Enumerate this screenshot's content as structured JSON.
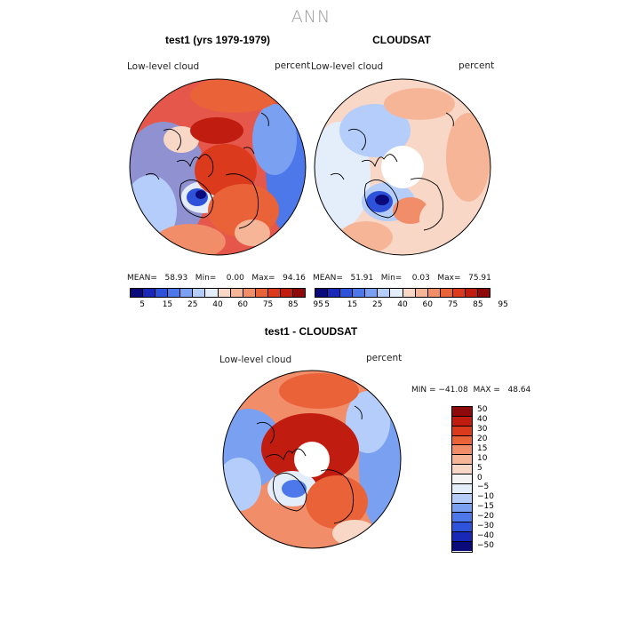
{
  "title": "ANN",
  "panel_left": {
    "title": "test1 (yrs 1979-1979)",
    "variable": "Low-level cloud",
    "units": "percent",
    "stats": "MEAN=   58.93   Min=    0.00   Max=   94.16"
  },
  "panel_right": {
    "title": "CLOUDSAT",
    "variable": "Low-level cloud",
    "units": "percent",
    "stats": "MEAN=   51.91   Min=    0.03   Max=   75.91"
  },
  "panel_diff": {
    "title": "test1 - CLOUDSAT",
    "variable": "Low-level cloud",
    "units": "percent",
    "minmax": "MIN = −41.08  MAX =   48.64"
  },
  "colorbar_top": {
    "colors": [
      "#0a0a7a",
      "#1a28b8",
      "#2e52d9",
      "#4c78ea",
      "#7aa0f2",
      "#b4cdfa",
      "#e4eefb",
      "#f9d7c7",
      "#f6b596",
      "#f28d69",
      "#ea6238",
      "#dc3a1c",
      "#c01c10",
      "#8e0a0a"
    ],
    "labels": [
      "5",
      "15",
      "25",
      "40",
      "60",
      "75",
      "85",
      "95"
    ]
  },
  "colorbar_diff": {
    "colors": [
      "#8e0a0a",
      "#c01c10",
      "#dc3a1c",
      "#ea6238",
      "#f28d69",
      "#f6b596",
      "#f9d7c7",
      "#f4f4f4",
      "#e4eefb",
      "#b4cdfa",
      "#7aa0f2",
      "#4c78ea",
      "#2e52d9",
      "#1a28b8",
      "#0a0a7a"
    ],
    "labels": [
      "50",
      "40",
      "30",
      "20",
      "15",
      "10",
      "5",
      "0",
      "−5",
      "−10",
      "−15",
      "−20",
      "−30",
      "−40",
      "−50"
    ]
  }
}
